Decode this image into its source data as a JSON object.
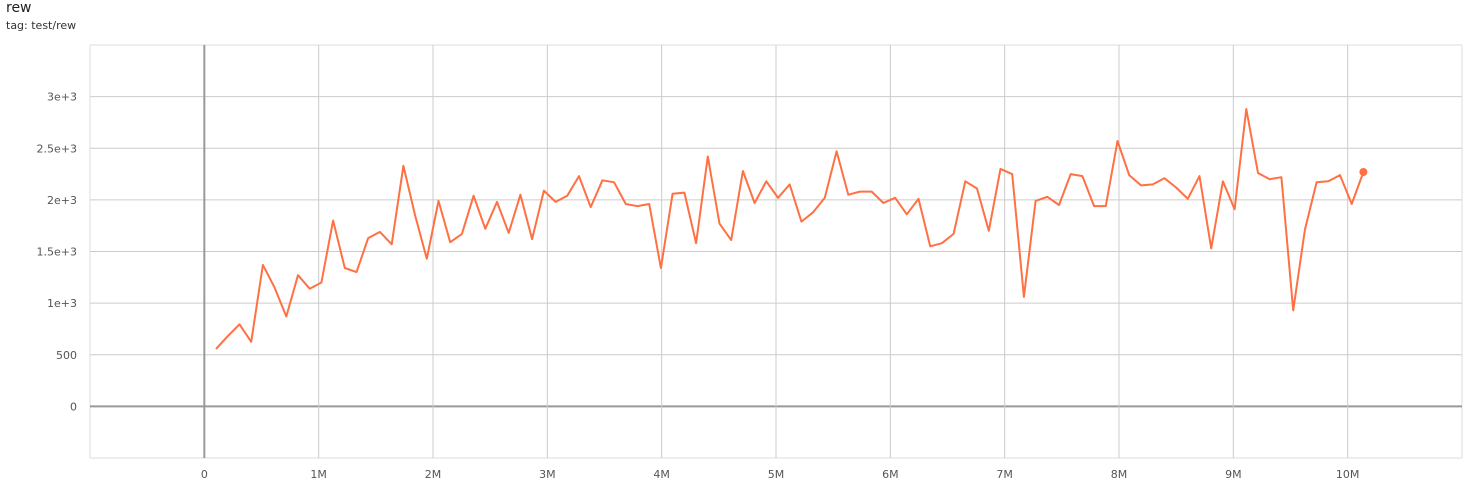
{
  "header": {
    "title": "rew",
    "tag": "tag: test/rew"
  },
  "chart_data": {
    "type": "line",
    "title": "rew",
    "subtitle": "tag: test/rew",
    "xlabel": "",
    "ylabel": "",
    "xlim": [
      -1000000,
      11000000
    ],
    "ylim": [
      -500,
      3500
    ],
    "grid": true,
    "color": "#ff7043",
    "x_ticks": [
      {
        "v": 0,
        "label": "0"
      },
      {
        "v": 1000000,
        "label": "1M"
      },
      {
        "v": 2000000,
        "label": "2M"
      },
      {
        "v": 3000000,
        "label": "3M"
      },
      {
        "v": 4000000,
        "label": "4M"
      },
      {
        "v": 5000000,
        "label": "5M"
      },
      {
        "v": 6000000,
        "label": "6M"
      },
      {
        "v": 7000000,
        "label": "7M"
      },
      {
        "v": 8000000,
        "label": "8M"
      },
      {
        "v": 9000000,
        "label": "9M"
      },
      {
        "v": 10000000,
        "label": "10M"
      }
    ],
    "y_ticks": [
      {
        "v": 0,
        "label": "0"
      },
      {
        "v": 500,
        "label": "500"
      },
      {
        "v": 1000,
        "label": "1e+3"
      },
      {
        "v": 1500,
        "label": "1.5e+3"
      },
      {
        "v": 2000,
        "label": "2e+3"
      },
      {
        "v": 2500,
        "label": "2.5e+3"
      },
      {
        "v": 3000,
        "label": "3e+3"
      }
    ],
    "series": [
      {
        "x": [
          102400,
          204800,
          307200,
          409600,
          512000,
          614400,
          716800,
          819200,
          921600,
          1024000,
          1126400,
          1228800,
          1331200,
          1433600,
          1536000,
          1638400,
          1740800,
          1843200,
          1945600,
          2048000,
          2150400,
          2252800,
          2355200,
          2457600,
          2560000,
          2662400,
          2764800,
          2867200,
          2969600,
          3072000,
          3174400,
          3276800,
          3379200,
          3481600,
          3584000,
          3686400,
          3788800,
          3891200,
          3993600,
          4096000,
          4198400,
          4300800,
          4403200,
          4505600,
          4608000,
          4710400,
          4812800,
          4915200,
          5017600,
          5120000,
          5222400,
          5324800,
          5427200,
          5529600,
          5632000,
          5734400,
          5836800,
          5939200,
          6041600,
          6144000,
          6246400,
          6348800,
          6451200,
          6553600,
          6656000,
          6758400,
          6860800,
          6963200,
          7065600,
          7168000,
          7270400,
          7372800,
          7475200,
          7577600,
          7680000,
          7782400,
          7884800,
          7987200,
          8089600,
          8192000,
          8294400,
          8396800,
          8499200,
          8601600,
          8704000,
          8806400,
          8908800,
          9011200,
          9113600,
          9216000,
          9318400,
          9420800,
          9523200,
          9625600,
          9728000,
          9830400,
          9932800,
          10035200,
          10137600
        ],
        "y": [
          555,
          680,
          795,
          625,
          1370,
          1150,
          870,
          1270,
          1140,
          1200,
          1800,
          1340,
          1300,
          1630,
          1690,
          1570,
          2330,
          1850,
          1430,
          1990,
          1590,
          1670,
          2040,
          1720,
          1980,
          1680,
          2050,
          1620,
          2090,
          1980,
          2040,
          2230,
          1930,
          2190,
          2170,
          1960,
          1940,
          1960,
          1340,
          2060,
          2070,
          1580,
          2420,
          1770,
          1610,
          2280,
          1970,
          2180,
          2020,
          2150,
          1790,
          1880,
          2020,
          2470,
          2050,
          2080,
          2080,
          1970,
          2020,
          1860,
          2010,
          1550,
          1580,
          1670,
          2180,
          2110,
          1700,
          2300,
          2250,
          1060,
          1990,
          2030,
          1950,
          2250,
          2230,
          1940,
          1940,
          2570,
          2240,
          2140,
          2150,
          2210,
          2120,
          2010,
          2230,
          1530,
          2180,
          1910,
          2880,
          2260,
          2200,
          2220,
          930,
          1710,
          2170,
          2180,
          2240,
          1960,
          2270
        ]
      }
    ]
  }
}
